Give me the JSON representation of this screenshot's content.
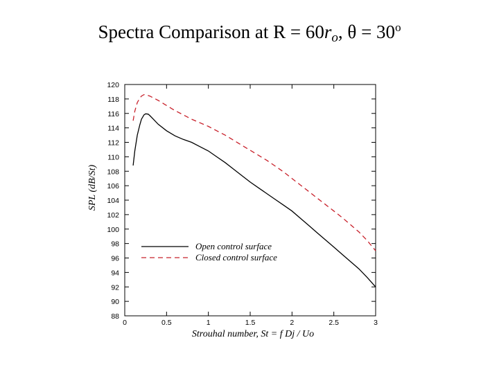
{
  "slide": {
    "title_prefix": "Spectra Comparison at R = 60",
    "title_r": "r",
    "title_r_sub": "o",
    "title_sep": ", ",
    "title_theta": "θ",
    "title_eq": " = 30",
    "title_deg": "o"
  },
  "chart_data": {
    "type": "line",
    "xlabel": "Strouhal number, St = f Dj / Uo",
    "ylabel": "SPL (dB/St)",
    "xlim": [
      0,
      3
    ],
    "ylim": [
      88,
      120
    ],
    "xticks": [
      "0",
      "0.5",
      "1",
      "1.5",
      "2",
      "2.5",
      "3"
    ],
    "yticks": [
      "88",
      "90",
      "92",
      "94",
      "96",
      "98",
      "100",
      "102",
      "104",
      "106",
      "108",
      "110",
      "112",
      "114",
      "116",
      "118",
      "120"
    ],
    "legend_position": "lower-left",
    "grid": false,
    "series": [
      {
        "name": "Open control surface",
        "color": "#000000",
        "style": "solid",
        "x": [
          0.1,
          0.12,
          0.15,
          0.18,
          0.2,
          0.23,
          0.25,
          0.28,
          0.3,
          0.35,
          0.4,
          0.5,
          0.6,
          0.7,
          0.8,
          0.9,
          1.0,
          1.1,
          1.2,
          1.3,
          1.4,
          1.5,
          1.6,
          1.7,
          1.8,
          1.9,
          2.0,
          2.1,
          2.2,
          2.3,
          2.4,
          2.5,
          2.6,
          2.7,
          2.8,
          2.9,
          3.0
        ],
        "y": [
          108.8,
          110.8,
          113.0,
          114.4,
          115.2,
          115.8,
          115.95,
          115.9,
          115.7,
          115.1,
          114.5,
          113.6,
          112.9,
          112.4,
          112.0,
          111.4,
          110.8,
          110.0,
          109.2,
          108.3,
          107.4,
          106.5,
          105.7,
          104.9,
          104.1,
          103.3,
          102.5,
          101.5,
          100.5,
          99.5,
          98.5,
          97.5,
          96.5,
          95.5,
          94.5,
          93.3,
          92.0
        ]
      },
      {
        "name": "Closed control surface",
        "color": "#c8202a",
        "style": "dashed",
        "x": [
          0.1,
          0.12,
          0.15,
          0.18,
          0.2,
          0.23,
          0.25,
          0.3,
          0.35,
          0.4,
          0.5,
          0.6,
          0.7,
          0.8,
          0.9,
          1.0,
          1.1,
          1.2,
          1.3,
          1.4,
          1.5,
          1.6,
          1.7,
          1.8,
          1.9,
          2.0,
          2.1,
          2.2,
          2.3,
          2.4,
          2.5,
          2.6,
          2.7,
          2.8,
          2.9,
          3.0
        ],
        "y": [
          115.0,
          116.3,
          117.5,
          118.1,
          118.4,
          118.6,
          118.6,
          118.4,
          118.1,
          117.8,
          117.1,
          116.4,
          115.8,
          115.2,
          114.7,
          114.2,
          113.6,
          113.0,
          112.3,
          111.6,
          110.9,
          110.2,
          109.5,
          108.7,
          107.9,
          107.0,
          106.1,
          105.2,
          104.3,
          103.4,
          102.5,
          101.6,
          100.6,
          99.6,
          98.4,
          97.0
        ]
      }
    ]
  }
}
